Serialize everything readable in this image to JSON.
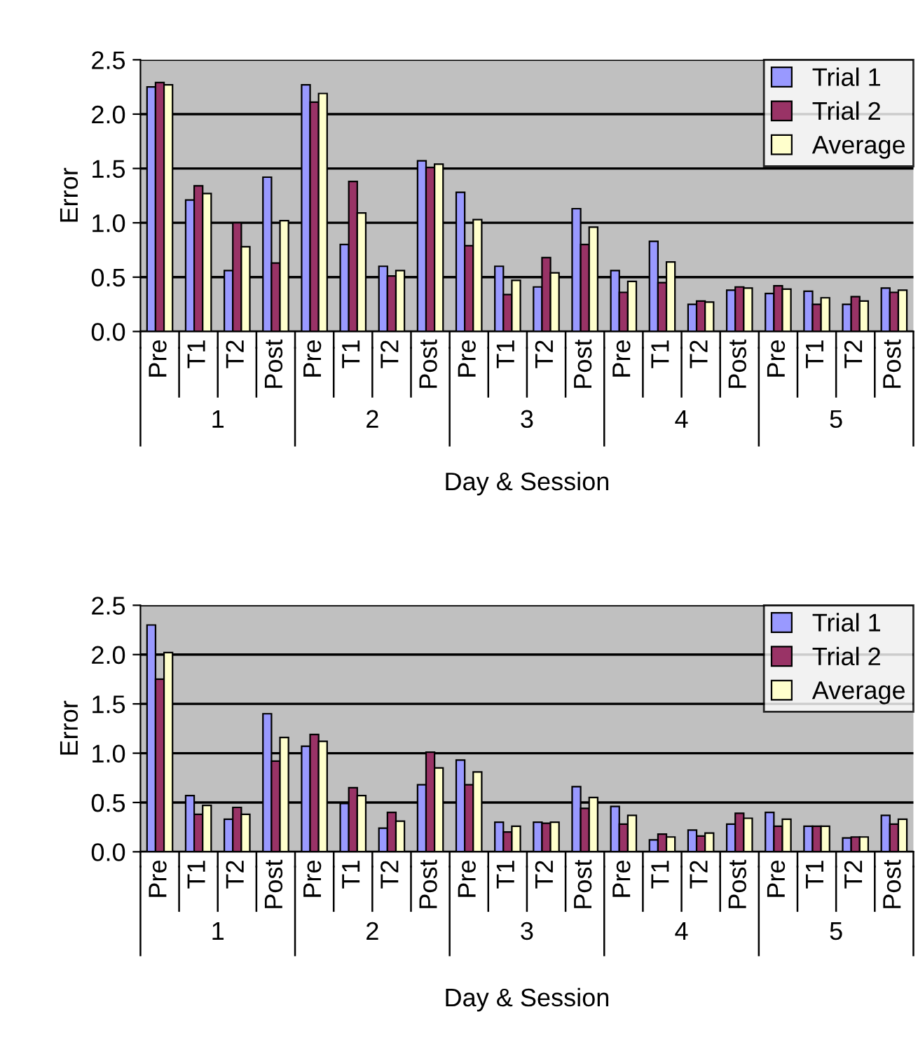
{
  "chart_data": [
    {
      "type": "bar",
      "xlabel": "Day & Session",
      "ylabel": "Error",
      "categories": [
        "Pre",
        "T1",
        "T2",
        "Post",
        "Pre",
        "T1",
        "T2",
        "Post",
        "Pre",
        "T1",
        "T2",
        "Post",
        "Pre",
        "T1",
        "T2",
        "Post",
        "Pre",
        "T1",
        "T2",
        "Post"
      ],
      "annotations": [
        "1",
        "2",
        "3",
        "4",
        "5"
      ],
      "series": [
        {
          "name": "Trial 1",
          "color": "#9999ff",
          "values": [
            2.25,
            1.21,
            0.56,
            1.42,
            2.27,
            0.8,
            0.6,
            1.57,
            1.28,
            0.6,
            0.41,
            1.13,
            0.56,
            0.83,
            0.25,
            0.38,
            0.35,
            0.37,
            0.25,
            0.4
          ]
        },
        {
          "name": "Trial 2",
          "color": "#993366",
          "values": [
            2.29,
            1.34,
            1.0,
            0.63,
            2.11,
            1.38,
            0.51,
            1.51,
            0.79,
            0.34,
            0.68,
            0.8,
            0.36,
            0.45,
            0.28,
            0.41,
            0.42,
            0.25,
            0.32,
            0.36
          ]
        },
        {
          "name": "Average",
          "color": "#ffffcc",
          "values": [
            2.27,
            1.27,
            0.78,
            1.02,
            2.19,
            1.09,
            0.56,
            1.54,
            1.03,
            0.47,
            0.54,
            0.96,
            0.46,
            0.64,
            0.27,
            0.4,
            0.39,
            0.31,
            0.28,
            0.38
          ]
        }
      ],
      "ylim": [
        0,
        2.5
      ],
      "yticks": [
        {
          "value": 0,
          "label": "0.0"
        },
        {
          "value": 0.5,
          "label": "0.5"
        },
        {
          "value": 1,
          "label": "1.0"
        },
        {
          "value": 1.5,
          "label": "1.5"
        },
        {
          "value": 2,
          "label": "2.0"
        },
        {
          "value": 2.5,
          "label": "2.5"
        }
      ],
      "grid": "y",
      "legend": "top right"
    },
    {
      "type": "bar",
      "xlabel": "Day & Session",
      "ylabel": "Error",
      "categories": [
        "Pre",
        "T1",
        "T2",
        "Post",
        "Pre",
        "T1",
        "T2",
        "Post",
        "Pre",
        "T1",
        "T2",
        "Post",
        "Pre",
        "T1",
        "T2",
        "Post",
        "Pre",
        "T1",
        "T2",
        "Post"
      ],
      "annotations": [
        "1",
        "2",
        "3",
        "4",
        "5"
      ],
      "series": [
        {
          "name": "Trial 1",
          "color": "#9999ff",
          "values": [
            2.3,
            0.57,
            0.33,
            1.4,
            1.07,
            0.49,
            0.24,
            0.68,
            0.93,
            0.3,
            0.3,
            0.66,
            0.46,
            0.12,
            0.22,
            0.28,
            0.4,
            0.26,
            0.14,
            0.37
          ]
        },
        {
          "name": "Trial 2",
          "color": "#993366",
          "values": [
            1.75,
            0.38,
            0.45,
            0.92,
            1.19,
            0.65,
            0.4,
            1.01,
            0.68,
            0.2,
            0.29,
            0.44,
            0.28,
            0.18,
            0.16,
            0.39,
            0.26,
            0.26,
            0.15,
            0.28
          ]
        },
        {
          "name": "Average",
          "color": "#ffffcc",
          "values": [
            2.02,
            0.47,
            0.38,
            1.16,
            1.12,
            0.57,
            0.31,
            0.85,
            0.81,
            0.26,
            0.3,
            0.55,
            0.37,
            0.15,
            0.19,
            0.34,
            0.33,
            0.26,
            0.15,
            0.33
          ]
        }
      ],
      "ylim": [
        0,
        2.5
      ],
      "yticks": [
        {
          "value": 0,
          "label": "0.0"
        },
        {
          "value": 0.5,
          "label": "0.5"
        },
        {
          "value": 1,
          "label": "1.0"
        },
        {
          "value": 1.5,
          "label": "1.5"
        },
        {
          "value": 2,
          "label": "2.0"
        },
        {
          "value": 2.5,
          "label": "2.5"
        }
      ],
      "grid": "y",
      "legend": "top right"
    }
  ]
}
